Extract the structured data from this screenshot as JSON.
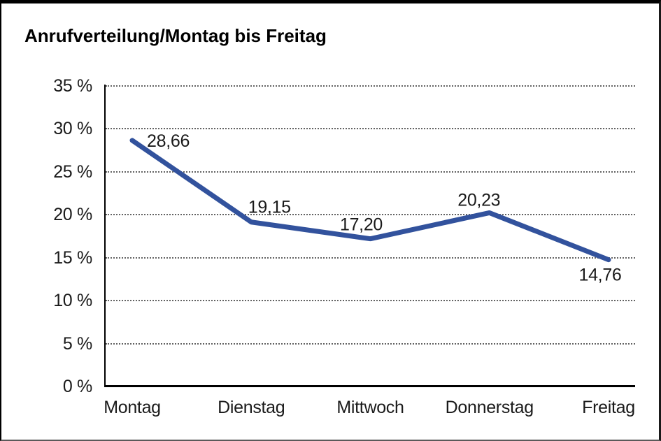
{
  "window": {
    "title": "Anrufverteilung/Montag bis Freitag"
  },
  "chart_data": {
    "type": "line",
    "title": "Anrufverteilung/Montag bis Freitag",
    "categories": [
      "Montag",
      "Dienstag",
      "Mittwoch",
      "Donnerstag",
      "Freitag"
    ],
    "series": [
      {
        "name": "Anrufverteilung",
        "values": [
          28.66,
          19.15,
          17.2,
          20.23,
          14.76
        ],
        "value_labels": [
          "28,66",
          "19,15",
          "17,20",
          "20,23",
          "14,76"
        ]
      }
    ],
    "unit": "%",
    "xlabel": "",
    "ylabel": "",
    "ylim": [
      0,
      35
    ],
    "yticks": [
      35,
      30,
      25,
      20,
      15,
      10,
      5,
      0
    ],
    "ytick_labels": [
      "35 %",
      "30 %",
      "25 %",
      "20 %",
      "15 %",
      "10 %",
      "5 %",
      "0 %"
    ],
    "grid": "horizontal-dotted",
    "legend_position": "none",
    "line_color": "#32529D",
    "text_color": "#1a1a1a",
    "background_color": "#ffffff"
  }
}
